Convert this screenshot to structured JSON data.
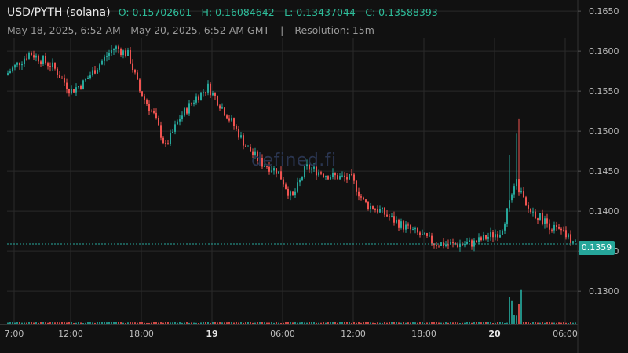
{
  "header": {
    "pair": "USD/PYTH (solana)",
    "ohlc": "O: 0.15702601 - H: 0.16084642 - L: 0.13437044 - C: 0.13588393",
    "range": "May 18, 2025, 6:52 AM - May 20, 2025, 6:52 AM GMT",
    "separator": "|",
    "resolution": "Resolution: 15m"
  },
  "watermark": "defined.fi",
  "last_price_label": "0.1359",
  "colors": {
    "up": "#26a69a",
    "down": "#ef5350",
    "background": "#111111",
    "grid": "#2a2a2a"
  },
  "chart_data": {
    "type": "candlestick",
    "resolution": "15m",
    "y_ticks": [
      "0.1650",
      "0.1600",
      "0.1550",
      "0.1500",
      "0.1450",
      "0.1400",
      "0.1350",
      "0.1300"
    ],
    "ylim": [
      0.1259,
      0.1656
    ],
    "x_ticks": [
      "7:00",
      "12:00",
      "18:00",
      "19",
      "06:00",
      "12:00",
      "18:00",
      "20",
      "06:00"
    ],
    "x_ticks_bold": [
      "19",
      "20"
    ],
    "last_price": 0.1359,
    "series": [
      {
        "time": "07:00",
        "close": 0.157
      },
      {
        "time": "09:00",
        "close": 0.1598
      },
      {
        "time": "10:30",
        "close": 0.158
      },
      {
        "time": "12:00",
        "close": 0.155
      },
      {
        "time": "13:00",
        "close": 0.156
      },
      {
        "time": "15:00",
        "close": 0.1585
      },
      {
        "time": "16:00",
        "close": 0.1605
      },
      {
        "time": "17:00",
        "close": 0.1595
      },
      {
        "time": "18:00",
        "close": 0.155
      },
      {
        "time": "19:30",
        "close": 0.152
      },
      {
        "time": "21:00",
        "close": 0.148
      },
      {
        "time": "22:00",
        "close": 0.1515
      },
      {
        "time": "23:30",
        "close": 0.154
      },
      {
        "time": "00:00",
        "close": 0.1555
      },
      {
        "time": "01:00",
        "close": 0.1535
      },
      {
        "time": "03:00",
        "close": 0.1505
      },
      {
        "time": "04:00",
        "close": 0.148
      },
      {
        "time": "05:00",
        "close": 0.146
      },
      {
        "time": "06:00",
        "close": 0.145
      },
      {
        "time": "06:45",
        "close": 0.1415
      },
      {
        "time": "08:00",
        "close": 0.1455
      },
      {
        "time": "10:00",
        "close": 0.1445
      },
      {
        "time": "12:00",
        "close": 0.144
      },
      {
        "time": "13:00",
        "close": 0.141
      },
      {
        "time": "14:00",
        "close": 0.14
      },
      {
        "time": "15:30",
        "close": 0.1385
      },
      {
        "time": "17:00",
        "close": 0.1375
      },
      {
        "time": "18:00",
        "close": 0.136
      },
      {
        "time": "19:00",
        "close": 0.1358
      },
      {
        "time": "20:00",
        "close": 0.136
      },
      {
        "time": "22:00",
        "close": 0.1375
      },
      {
        "time": "22:30",
        "close": 0.1435
      },
      {
        "time": "23:30",
        "close": 0.1405
      },
      {
        "time": "01:00",
        "close": 0.1392
      },
      {
        "time": "03:00",
        "close": 0.1378
      },
      {
        "time": "05:00",
        "close": 0.137
      },
      {
        "time": "06:52",
        "close": 0.1359
      }
    ],
    "spikes": [
      {
        "time": "21:20",
        "high": 0.147
      },
      {
        "time": "21:45",
        "high": 0.1497
      },
      {
        "time": "22:00",
        "high": 0.1515
      }
    ]
  }
}
